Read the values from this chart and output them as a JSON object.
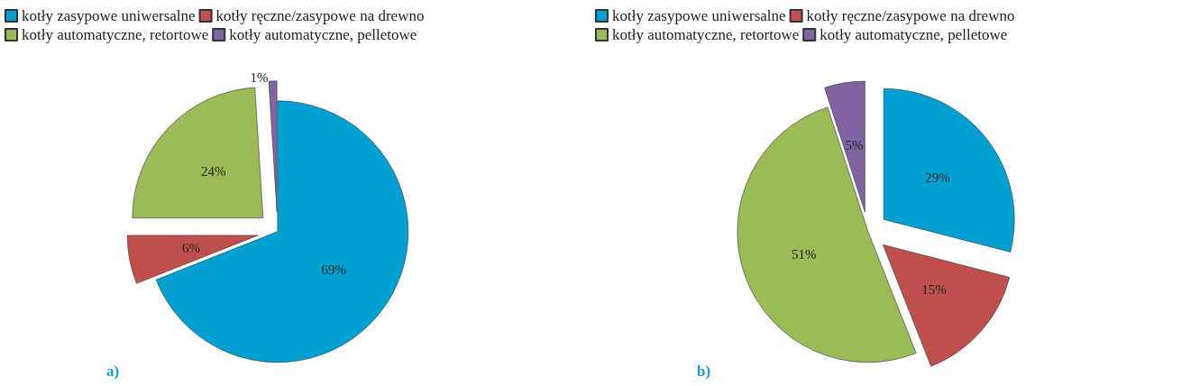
{
  "chart_data": [
    {
      "type": "pie",
      "categories": [
        "kotły zasypowe uniwersalne",
        "kotły ręczne/zasypowe na drewno",
        "kotły automatyczne, retortowe",
        "kotły automatyczne, pelletowe"
      ],
      "values": [
        69,
        6,
        24,
        1
      ],
      "colors": [
        "#00a0d2",
        "#c0504d",
        "#9bbb59",
        "#8064a2"
      ],
      "legend": "top",
      "value_labels": [
        "69%",
        "6%",
        "24%",
        "1%"
      ],
      "annotations": [
        "a)"
      ]
    },
    {
      "type": "pie",
      "categories": [
        "kotły zasypowe uniwersalne",
        "kotły ręczne/zasypowe na drewno",
        "kotły automatyczne, retortowe",
        "kotły automatyczne, pelletowe"
      ],
      "values": [
        29,
        15,
        51,
        5
      ],
      "colors": [
        "#00a0d2",
        "#c0504d",
        "#9bbb59",
        "#8064a2"
      ],
      "legend": "top",
      "value_labels": [
        "29%",
        "15%",
        "51%",
        "5%"
      ],
      "annotations": [
        "b)"
      ]
    }
  ]
}
